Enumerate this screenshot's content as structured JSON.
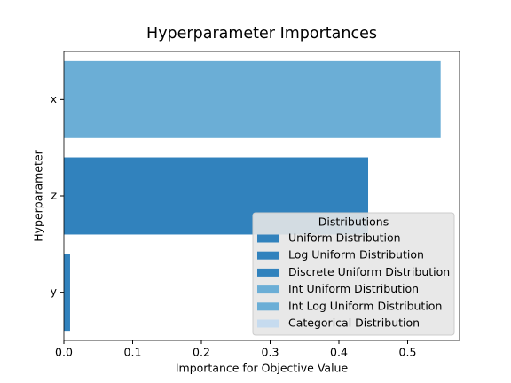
{
  "chart_data": {
    "type": "bar",
    "orientation": "horizontal",
    "title": "Hyperparameter Importances",
    "x_label": "Importance for Objective Value",
    "y_label": "Hyperparameter",
    "categories": [
      "x",
      "z",
      "y"
    ],
    "values": [
      0.548,
      0.4426,
      0.009
    ],
    "colors": [
      "#6baed6",
      "#3182bd",
      "#3182bd"
    ],
    "xlim": [
      0,
      0.5755
    ],
    "xticks": [
      {
        "value": 0,
        "label": "0.0"
      },
      0.1,
      0.2,
      0.3,
      0.4,
      0.5
    ],
    "legend": {
      "title": "Distributions",
      "position": "lower right",
      "entries": [
        {
          "name": "Uniform Distribution",
          "color": "#3182bd"
        },
        {
          "name": "Log Uniform Distribution",
          "color": "#3182bd"
        },
        {
          "name": "Discrete Uniform Distribution",
          "color": "#3182bd"
        },
        {
          "name": "Int Uniform Distribution",
          "color": "#6baed6"
        },
        {
          "name": "Int Log Uniform Distribution",
          "color": "#6baed6"
        },
        {
          "name": "Categorical Distribution",
          "color": "#c6dbef"
        }
      ]
    }
  }
}
